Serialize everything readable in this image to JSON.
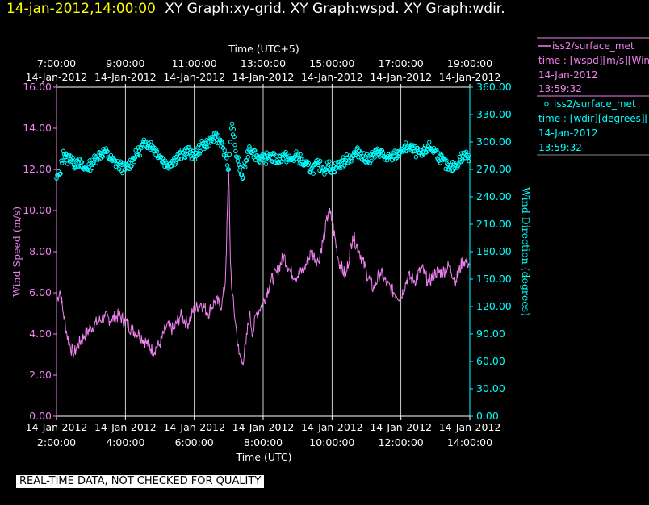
{
  "header": {
    "datetime": "14-jan-2012,14:00:00",
    "graphs": "XY Graph:xy-grid.  XY Graph:wspd.  XY Graph:wdir."
  },
  "footer": {
    "notice": "REAL-TIME DATA, NOT CHECKED FOR QUALITY"
  },
  "colors": {
    "background": "#000000",
    "header_date": "#ffff00",
    "header_text": "#ffffff",
    "speed": "#ee82ee",
    "direction": "#00ffff",
    "grid": "#ffffff",
    "axis_text": "#ffffff"
  },
  "chart_data": {
    "type": "line",
    "x_top_title": "Time (UTC+5)",
    "x_bottom_title": "Time (UTC)",
    "x_bottom_ticks": [
      {
        "date": "14-Jan-2012",
        "time": "2:00:00"
      },
      {
        "date": "14-Jan-2012",
        "time": "4:00:00"
      },
      {
        "date": "14-Jan-2012",
        "time": "6:00:00"
      },
      {
        "date": "14-Jan-2012",
        "time": "8:00:00"
      },
      {
        "date": "14-Jan-2012",
        "time": "10:00:00"
      },
      {
        "date": "14-Jan-2012",
        "time": "12:00:00"
      },
      {
        "date": "14-Jan-2012",
        "time": "14:00:00"
      }
    ],
    "x_top_ticks": [
      {
        "time": "7:00:00",
        "date": "14-Jan-2012"
      },
      {
        "time": "9:00:00",
        "date": "14-Jan-2012"
      },
      {
        "time": "11:00:00",
        "date": "14-Jan-2012"
      },
      {
        "time": "13:00:00",
        "date": "14-Jan-2012"
      },
      {
        "time": "15:00:00",
        "date": "14-Jan-2012"
      },
      {
        "time": "17:00:00",
        "date": "14-Jan-2012"
      },
      {
        "time": "19:00:00",
        "date": "14-Jan-2012"
      }
    ],
    "x_range_hours_utc": [
      2,
      14
    ],
    "y_left": {
      "label": "Wind Speed (m/s)",
      "range": [
        0,
        16
      ],
      "ticks": [
        "0.00",
        "2.00",
        "4.00",
        "6.00",
        "8.00",
        "10.00",
        "12.00",
        "14.00",
        "16.00"
      ]
    },
    "y_right": {
      "label": "Wind Direction (degrees)",
      "range": [
        0,
        360
      ],
      "ticks": [
        "0.00",
        "30.00",
        "60.00",
        "90.00",
        "120.00",
        "150.00",
        "180.00",
        "210.00",
        "240.00",
        "270.00",
        "300.00",
        "330.00",
        "360.00"
      ]
    },
    "grid": "vertical lines at bottom ticks",
    "series": [
      {
        "name": "iss2/surface_met",
        "legend_line2": "time : [wspd][m/s][Wind",
        "legend_date": "14-Jan-2012",
        "legend_time": "13:59:32",
        "style": "line",
        "axis": "left",
        "x_hours": [
          2.0,
          2.1,
          2.2,
          2.3,
          2.4,
          2.5,
          2.6,
          2.8,
          3.0,
          3.2,
          3.4,
          3.6,
          3.8,
          4.0,
          4.2,
          4.4,
          4.6,
          4.8,
          5.0,
          5.2,
          5.4,
          5.6,
          5.8,
          6.0,
          6.2,
          6.4,
          6.6,
          6.8,
          6.9,
          7.0,
          7.05,
          7.1,
          7.2,
          7.3,
          7.4,
          7.5,
          7.6,
          7.7,
          7.8,
          8.0,
          8.2,
          8.4,
          8.6,
          8.8,
          9.0,
          9.2,
          9.4,
          9.6,
          9.8,
          9.9,
          10.0,
          10.2,
          10.4,
          10.6,
          10.8,
          11.0,
          11.2,
          11.4,
          11.6,
          11.8,
          12.0,
          12.2,
          12.4,
          12.6,
          12.8,
          13.0,
          13.2,
          13.4,
          13.6,
          13.8,
          14.0
        ],
        "values": [
          5.6,
          6.1,
          5.0,
          4.0,
          3.4,
          3.0,
          3.4,
          3.9,
          4.3,
          4.6,
          4.8,
          4.7,
          4.9,
          4.6,
          4.2,
          4.0,
          3.6,
          3.2,
          3.5,
          4.4,
          4.2,
          4.9,
          4.5,
          5.2,
          5.5,
          5.0,
          5.6,
          5.4,
          6.5,
          12.0,
          7.5,
          6.0,
          4.5,
          3.0,
          2.6,
          3.5,
          5.0,
          4.0,
          5.0,
          5.5,
          6.5,
          7.0,
          7.8,
          7.0,
          6.8,
          7.2,
          8.0,
          7.5,
          9.0,
          10.0,
          9.5,
          7.5,
          6.8,
          8.8,
          8.0,
          7.0,
          6.2,
          7.0,
          6.4,
          6.0,
          5.8,
          6.8,
          6.6,
          7.2,
          6.5,
          7.0,
          7.0,
          7.3,
          6.6,
          7.6,
          7.4
        ]
      },
      {
        "name": "iss2/surface_met",
        "legend_line2": "time : [wdir][degrees][W",
        "legend_date": "14-Jan-2012",
        "legend_time": "13:59:32",
        "style": "scatter",
        "axis": "right",
        "x_hours": [
          2.0,
          2.1,
          2.2,
          2.3,
          2.4,
          2.5,
          2.6,
          2.8,
          3.0,
          3.2,
          3.4,
          3.6,
          3.8,
          4.0,
          4.2,
          4.4,
          4.6,
          4.8,
          5.0,
          5.2,
          5.4,
          5.6,
          5.8,
          6.0,
          6.2,
          6.4,
          6.6,
          6.8,
          6.9,
          7.0,
          7.05,
          7.1,
          7.2,
          7.3,
          7.4,
          7.5,
          7.6,
          7.7,
          7.8,
          8.0,
          8.2,
          8.4,
          8.6,
          8.8,
          9.0,
          9.2,
          9.4,
          9.6,
          9.8,
          9.9,
          10.0,
          10.2,
          10.4,
          10.6,
          10.8,
          11.0,
          11.2,
          11.4,
          11.6,
          11.8,
          12.0,
          12.2,
          12.4,
          12.6,
          12.8,
          13.0,
          13.2,
          13.4,
          13.6,
          13.8,
          14.0
        ],
        "values": [
          260,
          265,
          290,
          280,
          285,
          275,
          280,
          270,
          275,
          285,
          290,
          280,
          275,
          270,
          280,
          290,
          300,
          295,
          285,
          275,
          280,
          285,
          290,
          285,
          295,
          300,
          305,
          300,
          285,
          270,
          300,
          320,
          290,
          275,
          260,
          280,
          295,
          290,
          285,
          280,
          285,
          280,
          285,
          280,
          285,
          275,
          270,
          275,
          270,
          275,
          270,
          275,
          280,
          285,
          290,
          280,
          285,
          290,
          280,
          285,
          290,
          295,
          290,
          285,
          295,
          290,
          280,
          270,
          275,
          285,
          285
        ]
      }
    ]
  }
}
